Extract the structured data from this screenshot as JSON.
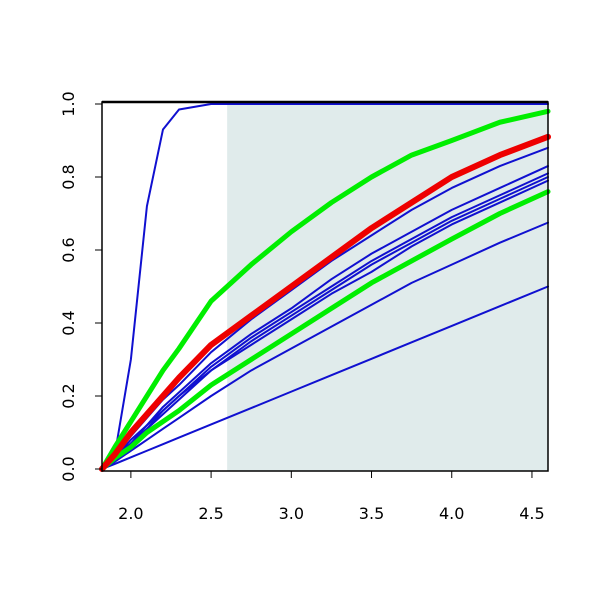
{
  "chart_data": {
    "type": "line",
    "x": [
      1.82,
      1.9,
      2.0,
      2.1,
      2.2,
      2.3,
      2.5,
      2.75,
      3.0,
      3.25,
      3.5,
      3.75,
      4.0,
      4.3,
      4.6
    ],
    "xlim": [
      1.82,
      4.6
    ],
    "ylim": [
      0,
      1
    ],
    "xticks": [
      {
        "value": 2,
        "label": "2.0"
      },
      2.5,
      {
        "value": 3,
        "label": "3.0"
      },
      3.5,
      {
        "value": 4,
        "label": "4.0"
      },
      4.5
    ],
    "yticks": [
      {
        "value": 0,
        "label": "0.0"
      },
      0.2,
      0.4,
      0.6,
      0.8,
      {
        "value": 1,
        "label": "1.0"
      }
    ],
    "shade": {
      "xlim": [
        2.6,
        4.6
      ],
      "color": "#e0ebeb"
    },
    "series": [
      {
        "color": "#1010d0",
        "width": 2,
        "values": [
          0,
          0.04,
          0.3,
          0.72,
          0.93,
          0.985,
          1,
          1,
          1,
          1,
          1,
          1,
          1,
          1,
          1
        ]
      },
      {
        "color": "#1010d0",
        "width": 2,
        "values": [
          0,
          0.04,
          0.09,
          0.14,
          0.19,
          0.23,
          0.32,
          0.41,
          0.49,
          0.57,
          0.64,
          0.71,
          0.77,
          0.83,
          0.88
        ]
      },
      {
        "color": "#1010d0",
        "width": 2,
        "values": [
          0,
          0.03,
          0.08,
          0.12,
          0.17,
          0.21,
          0.29,
          0.37,
          0.44,
          0.52,
          0.59,
          0.65,
          0.71,
          0.77,
          0.83
        ]
      },
      {
        "color": "#1010d0",
        "width": 2,
        "values": [
          0,
          0.03,
          0.07,
          0.12,
          0.16,
          0.2,
          0.28,
          0.36,
          0.43,
          0.5,
          0.57,
          0.63,
          0.69,
          0.75,
          0.81
        ]
      },
      {
        "color": "#1010d0",
        "width": 2,
        "values": [
          0,
          0.03,
          0.07,
          0.11,
          0.16,
          0.2,
          0.27,
          0.35,
          0.42,
          0.49,
          0.56,
          0.62,
          0.68,
          0.74,
          0.8
        ]
      },
      {
        "color": "#1010d0",
        "width": 2,
        "values": [
          0,
          0.03,
          0.07,
          0.11,
          0.15,
          0.19,
          0.27,
          0.34,
          0.41,
          0.48,
          0.54,
          0.61,
          0.67,
          0.73,
          0.79
        ]
      },
      {
        "color": "#1010d0",
        "width": 2,
        "values": [
          0,
          0.02,
          0.05,
          0.08,
          0.11,
          0.14,
          0.2,
          0.27,
          0.33,
          0.39,
          0.45,
          0.51,
          0.56,
          0.62,
          0.675
        ]
      },
      {
        "color": "#1010d0",
        "width": 2,
        "values": [
          0,
          0.014,
          0.032,
          0.05,
          0.068,
          0.086,
          0.122,
          0.167,
          0.212,
          0.257,
          0.302,
          0.347,
          0.392,
          0.446,
          0.5
        ]
      },
      {
        "color": "#00ee00",
        "width": 5,
        "values": [
          0,
          0.03,
          0.06,
          0.1,
          0.13,
          0.16,
          0.23,
          0.3,
          0.37,
          0.44,
          0.51,
          0.57,
          0.63,
          0.7,
          0.76
        ]
      },
      {
        "color": "#00ee00",
        "width": 5,
        "values": [
          0,
          0.06,
          0.13,
          0.2,
          0.27,
          0.33,
          0.46,
          0.56,
          0.65,
          0.73,
          0.8,
          0.86,
          0.9,
          0.95,
          0.98
        ]
      },
      {
        "color": "#ee0000",
        "width": 6,
        "values": [
          0,
          0.04,
          0.1,
          0.15,
          0.2,
          0.25,
          0.34,
          0.42,
          0.5,
          0.58,
          0.66,
          0.73,
          0.8,
          0.86,
          0.91
        ]
      }
    ]
  }
}
